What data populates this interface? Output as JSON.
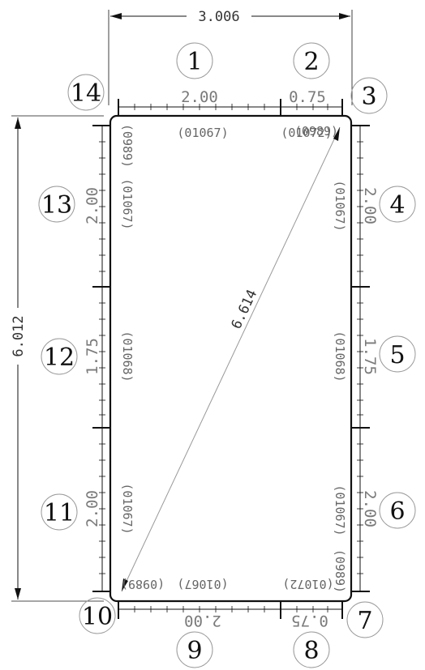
{
  "overall": {
    "width": "3.006",
    "height": "6.012",
    "diagonal": "6.614"
  },
  "segments": {
    "top_long": "2.00",
    "top_short": "0.75",
    "right_a": "2.00",
    "right_b": "1.75",
    "right_c": "2.00",
    "bottom_long": "2.00",
    "bottom_short": "0.75",
    "left_a": "2.00",
    "left_b": "1.75",
    "left_c": "2.00"
  },
  "codes": {
    "top_long": "(01067)",
    "top_short_a": "(01072)",
    "top_short_b": "(0989)",
    "right_a": "(01067)",
    "right_b": "(01068)",
    "right_c": "(01067)",
    "right_corner": "(0989)",
    "bottom_long": "(01067)",
    "bottom_short": "(01072)",
    "bottom_corner": "(0989)",
    "left_a": "(01067)",
    "left_b": "(01068)",
    "left_c": "(01067)",
    "left_corner": "(0989)"
  },
  "numbers": [
    "1",
    "2",
    "3",
    "4",
    "5",
    "6",
    "7",
    "8",
    "9",
    "10",
    "11",
    "12",
    "13",
    "14"
  ]
}
